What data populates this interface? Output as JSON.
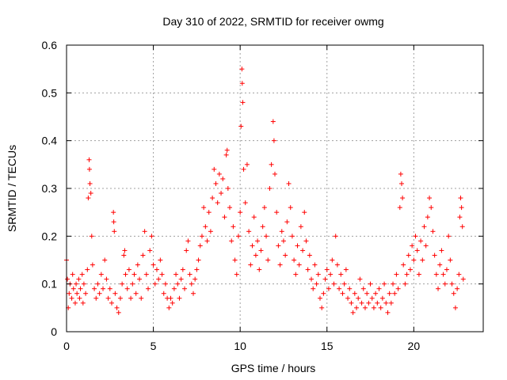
{
  "chart_data": {
    "type": "scatter",
    "title": "Day 310 of 2022, SRMTID for receiver owmg",
    "xlabel": "GPS time / hours",
    "ylabel": "SRMTID / TECUs",
    "xlim": [
      0,
      24
    ],
    "ylim": [
      0,
      0.6
    ],
    "xticks": [
      0,
      5,
      10,
      15,
      20
    ],
    "yticks": [
      0,
      0.1,
      0.2,
      0.3,
      0.4,
      0.5,
      0.6
    ],
    "xtick_labels": [
      "0",
      "5",
      "10",
      "15",
      "20"
    ],
    "ytick_labels": [
      "0",
      "0.1",
      "0.2",
      "0.3",
      "0.4",
      "0.5",
      "0.6"
    ],
    "grid": true,
    "marker": "plus",
    "series": [
      {
        "name": "SRMTID",
        "color": "#ff0000",
        "points": [
          [
            0.0,
            0.15
          ],
          [
            0.05,
            0.11
          ],
          [
            0.1,
            0.05
          ],
          [
            0.15,
            0.08
          ],
          [
            0.2,
            0.1
          ],
          [
            0.3,
            0.07
          ],
          [
            0.35,
            0.12
          ],
          [
            0.4,
            0.09
          ],
          [
            0.5,
            0.06
          ],
          [
            0.55,
            0.1
          ],
          [
            0.6,
            0.08
          ],
          [
            0.7,
            0.11
          ],
          [
            0.75,
            0.07
          ],
          [
            0.8,
            0.09
          ],
          [
            0.9,
            0.12
          ],
          [
            0.95,
            0.06
          ],
          [
            1.0,
            0.1
          ],
          [
            1.1,
            0.08
          ],
          [
            1.2,
            0.13
          ],
          [
            1.25,
            0.28
          ],
          [
            1.3,
            0.36
          ],
          [
            1.32,
            0.34
          ],
          [
            1.35,
            0.31
          ],
          [
            1.4,
            0.29
          ],
          [
            1.45,
            0.2
          ],
          [
            1.5,
            0.14
          ],
          [
            1.6,
            0.09
          ],
          [
            1.7,
            0.07
          ],
          [
            1.8,
            0.1
          ],
          [
            1.9,
            0.08
          ],
          [
            2.0,
            0.12
          ],
          [
            2.1,
            0.09
          ],
          [
            2.2,
            0.15
          ],
          [
            2.3,
            0.11
          ],
          [
            2.4,
            0.07
          ],
          [
            2.5,
            0.09
          ],
          [
            2.6,
            0.06
          ],
          [
            2.7,
            0.25
          ],
          [
            2.72,
            0.23
          ],
          [
            2.75,
            0.21
          ],
          [
            2.8,
            0.08
          ],
          [
            2.9,
            0.05
          ],
          [
            3.0,
            0.04
          ],
          [
            3.1,
            0.07
          ],
          [
            3.2,
            0.1
          ],
          [
            3.3,
            0.16
          ],
          [
            3.35,
            0.17
          ],
          [
            3.4,
            0.12
          ],
          [
            3.5,
            0.09
          ],
          [
            3.6,
            0.13
          ],
          [
            3.7,
            0.07
          ],
          [
            3.8,
            0.1
          ],
          [
            3.9,
            0.12
          ],
          [
            4.0,
            0.08
          ],
          [
            4.1,
            0.14
          ],
          [
            4.2,
            0.11
          ],
          [
            4.3,
            0.07
          ],
          [
            4.4,
            0.16
          ],
          [
            4.5,
            0.21
          ],
          [
            4.6,
            0.12
          ],
          [
            4.7,
            0.09
          ],
          [
            4.8,
            0.17
          ],
          [
            4.9,
            0.2
          ],
          [
            5.0,
            0.14
          ],
          [
            5.1,
            0.1
          ],
          [
            5.2,
            0.13
          ],
          [
            5.3,
            0.11
          ],
          [
            5.4,
            0.15
          ],
          [
            5.5,
            0.12
          ],
          [
            5.6,
            0.08
          ],
          [
            5.7,
            0.1
          ],
          [
            5.8,
            0.07
          ],
          [
            5.9,
            0.05
          ],
          [
            6.0,
            0.07
          ],
          [
            6.1,
            0.06
          ],
          [
            6.2,
            0.09
          ],
          [
            6.3,
            0.12
          ],
          [
            6.4,
            0.1
          ],
          [
            6.5,
            0.07
          ],
          [
            6.6,
            0.11
          ],
          [
            6.7,
            0.13
          ],
          [
            6.8,
            0.09
          ],
          [
            6.9,
            0.17
          ],
          [
            7.0,
            0.19
          ],
          [
            7.1,
            0.12
          ],
          [
            7.2,
            0.1
          ],
          [
            7.3,
            0.08
          ],
          [
            7.4,
            0.11
          ],
          [
            7.5,
            0.13
          ],
          [
            7.6,
            0.15
          ],
          [
            7.7,
            0.18
          ],
          [
            7.8,
            0.2
          ],
          [
            7.9,
            0.26
          ],
          [
            8.0,
            0.22
          ],
          [
            8.1,
            0.19
          ],
          [
            8.2,
            0.25
          ],
          [
            8.3,
            0.21
          ],
          [
            8.4,
            0.28
          ],
          [
            8.5,
            0.34
          ],
          [
            8.6,
            0.31
          ],
          [
            8.7,
            0.27
          ],
          [
            8.8,
            0.33
          ],
          [
            8.9,
            0.29
          ],
          [
            9.0,
            0.32
          ],
          [
            9.1,
            0.24
          ],
          [
            9.2,
            0.37
          ],
          [
            9.25,
            0.38
          ],
          [
            9.3,
            0.3
          ],
          [
            9.4,
            0.26
          ],
          [
            9.5,
            0.19
          ],
          [
            9.6,
            0.22
          ],
          [
            9.7,
            0.15
          ],
          [
            9.8,
            0.12
          ],
          [
            9.9,
            0.2
          ],
          [
            10.0,
            0.25
          ],
          [
            10.05,
            0.43
          ],
          [
            10.1,
            0.55
          ],
          [
            10.12,
            0.52
          ],
          [
            10.15,
            0.48
          ],
          [
            10.2,
            0.34
          ],
          [
            10.3,
            0.27
          ],
          [
            10.4,
            0.35
          ],
          [
            10.5,
            0.21
          ],
          [
            10.6,
            0.14
          ],
          [
            10.7,
            0.18
          ],
          [
            10.8,
            0.24
          ],
          [
            10.9,
            0.16
          ],
          [
            11.0,
            0.19
          ],
          [
            11.1,
            0.13
          ],
          [
            11.2,
            0.17
          ],
          [
            11.3,
            0.22
          ],
          [
            11.4,
            0.26
          ],
          [
            11.5,
            0.2
          ],
          [
            11.6,
            0.15
          ],
          [
            11.7,
            0.3
          ],
          [
            11.8,
            0.35
          ],
          [
            11.9,
            0.44
          ],
          [
            11.95,
            0.4
          ],
          [
            12.0,
            0.33
          ],
          [
            12.1,
            0.25
          ],
          [
            12.2,
            0.18
          ],
          [
            12.3,
            0.14
          ],
          [
            12.4,
            0.21
          ],
          [
            12.5,
            0.19
          ],
          [
            12.6,
            0.16
          ],
          [
            12.7,
            0.23
          ],
          [
            12.8,
            0.31
          ],
          [
            12.9,
            0.26
          ],
          [
            13.0,
            0.2
          ],
          [
            13.1,
            0.15
          ],
          [
            13.2,
            0.12
          ],
          [
            13.3,
            0.18
          ],
          [
            13.4,
            0.14
          ],
          [
            13.5,
            0.22
          ],
          [
            13.6,
            0.17
          ],
          [
            13.7,
            0.25
          ],
          [
            13.8,
            0.19
          ],
          [
            13.9,
            0.13
          ],
          [
            14.0,
            0.16
          ],
          [
            14.1,
            0.11
          ],
          [
            14.2,
            0.09
          ],
          [
            14.3,
            0.14
          ],
          [
            14.4,
            0.1
          ],
          [
            14.5,
            0.12
          ],
          [
            14.6,
            0.07
          ],
          [
            14.7,
            0.05
          ],
          [
            14.8,
            0.08
          ],
          [
            14.9,
            0.11
          ],
          [
            15.0,
            0.13
          ],
          [
            15.1,
            0.09
          ],
          [
            15.2,
            0.12
          ],
          [
            15.3,
            0.15
          ],
          [
            15.4,
            0.1
          ],
          [
            15.5,
            0.2
          ],
          [
            15.6,
            0.14
          ],
          [
            15.7,
            0.09
          ],
          [
            15.8,
            0.12
          ],
          [
            15.9,
            0.08
          ],
          [
            16.0,
            0.1
          ],
          [
            16.1,
            0.13
          ],
          [
            16.2,
            0.07
          ],
          [
            16.3,
            0.09
          ],
          [
            16.4,
            0.06
          ],
          [
            16.5,
            0.04
          ],
          [
            16.6,
            0.08
          ],
          [
            16.7,
            0.05
          ],
          [
            16.8,
            0.07
          ],
          [
            16.9,
            0.11
          ],
          [
            17.0,
            0.06
          ],
          [
            17.1,
            0.09
          ],
          [
            17.2,
            0.05
          ],
          [
            17.3,
            0.08
          ],
          [
            17.4,
            0.06
          ],
          [
            17.5,
            0.1
          ],
          [
            17.6,
            0.07
          ],
          [
            17.7,
            0.05
          ],
          [
            17.8,
            0.08
          ],
          [
            17.9,
            0.06
          ],
          [
            18.0,
            0.09
          ],
          [
            18.1,
            0.05
          ],
          [
            18.2,
            0.07
          ],
          [
            18.3,
            0.1
          ],
          [
            18.4,
            0.06
          ],
          [
            18.5,
            0.04
          ],
          [
            18.6,
            0.08
          ],
          [
            18.7,
            0.06
          ],
          [
            18.8,
            0.1
          ],
          [
            18.9,
            0.08
          ],
          [
            19.0,
            0.12
          ],
          [
            19.1,
            0.09
          ],
          [
            19.2,
            0.26
          ],
          [
            19.25,
            0.33
          ],
          [
            19.3,
            0.31
          ],
          [
            19.35,
            0.28
          ],
          [
            19.4,
            0.14
          ],
          [
            19.5,
            0.1
          ],
          [
            19.6,
            0.12
          ],
          [
            19.7,
            0.16
          ],
          [
            19.8,
            0.13
          ],
          [
            19.9,
            0.18
          ],
          [
            20.0,
            0.15
          ],
          [
            20.1,
            0.2
          ],
          [
            20.2,
            0.17
          ],
          [
            20.3,
            0.12
          ],
          [
            20.4,
            0.19
          ],
          [
            20.5,
            0.15
          ],
          [
            20.6,
            0.22
          ],
          [
            20.7,
            0.18
          ],
          [
            20.8,
            0.24
          ],
          [
            20.9,
            0.28
          ],
          [
            21.0,
            0.26
          ],
          [
            21.1,
            0.21
          ],
          [
            21.2,
            0.16
          ],
          [
            21.3,
            0.12
          ],
          [
            21.4,
            0.09
          ],
          [
            21.5,
            0.14
          ],
          [
            21.6,
            0.17
          ],
          [
            21.7,
            0.12
          ],
          [
            21.8,
            0.1
          ],
          [
            21.9,
            0.13
          ],
          [
            22.0,
            0.2
          ],
          [
            22.1,
            0.15
          ],
          [
            22.2,
            0.1
          ],
          [
            22.3,
            0.08
          ],
          [
            22.4,
            0.05
          ],
          [
            22.5,
            0.09
          ],
          [
            22.6,
            0.12
          ],
          [
            22.65,
            0.24
          ],
          [
            22.7,
            0.28
          ],
          [
            22.75,
            0.26
          ],
          [
            22.8,
            0.22
          ],
          [
            22.85,
            0.11
          ]
        ]
      }
    ]
  }
}
